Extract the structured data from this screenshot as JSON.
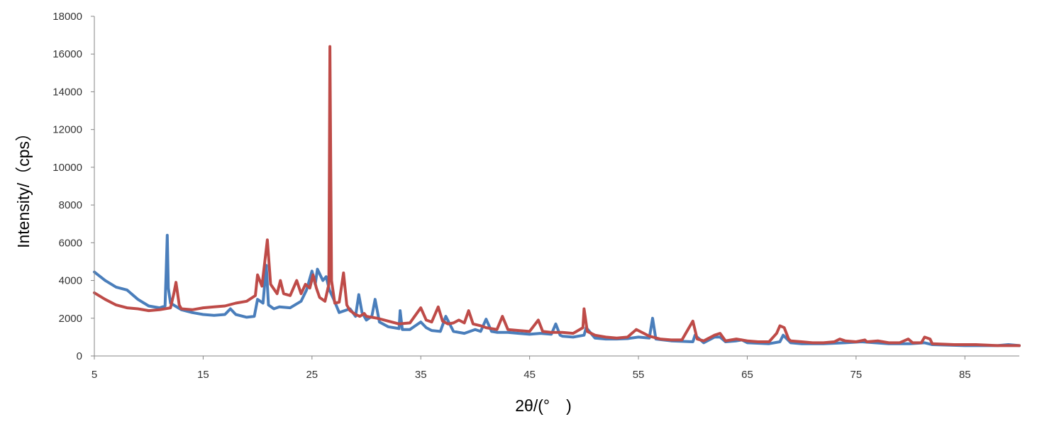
{
  "chart_data": {
    "type": "line",
    "title": "",
    "xlabel": "2θ/(°　)",
    "ylabel": "Intensity/（cps）",
    "xlim": [
      5,
      90
    ],
    "ylim": [
      0,
      18000
    ],
    "x_ticks": [
      5,
      15,
      25,
      35,
      45,
      55,
      65,
      75,
      85
    ],
    "x_tick_labels": [
      "5",
      "15",
      "25",
      "35",
      "45",
      "55",
      "65",
      "75",
      "85"
    ],
    "y_ticks": [
      0,
      2000,
      4000,
      6000,
      8000,
      10000,
      12000,
      14000,
      16000,
      18000
    ],
    "y_tick_labels": [
      "0",
      "2000",
      "4000",
      "6000",
      "8000",
      "10000",
      "12000",
      "14000",
      "16000",
      "18000"
    ],
    "grid": false,
    "legend": "none",
    "series": [
      {
        "color": "#4a7ebb",
        "points": [
          [
            5,
            4450
          ],
          [
            6,
            4000
          ],
          [
            7,
            3650
          ],
          [
            8,
            3500
          ],
          [
            9,
            3000
          ],
          [
            10,
            2650
          ],
          [
            11,
            2550
          ],
          [
            11.5,
            2650
          ],
          [
            11.6,
            4500
          ],
          [
            11.7,
            6400
          ],
          [
            11.8,
            3600
          ],
          [
            12,
            2800
          ],
          [
            13,
            2450
          ],
          [
            14,
            2300
          ],
          [
            15,
            2200
          ],
          [
            16,
            2150
          ],
          [
            17,
            2200
          ],
          [
            17.5,
            2500
          ],
          [
            18,
            2200
          ],
          [
            19,
            2050
          ],
          [
            19.7,
            2100
          ],
          [
            20,
            3000
          ],
          [
            20.5,
            2800
          ],
          [
            20.8,
            4800
          ],
          [
            21,
            2700
          ],
          [
            21.5,
            2500
          ],
          [
            22,
            2600
          ],
          [
            23,
            2550
          ],
          [
            24,
            2900
          ],
          [
            24.5,
            3500
          ],
          [
            25,
            4500
          ],
          [
            25.3,
            3800
          ],
          [
            25.5,
            4600
          ],
          [
            26,
            4000
          ],
          [
            26.3,
            4200
          ],
          [
            26.6,
            3500
          ],
          [
            27,
            3000
          ],
          [
            27.5,
            2300
          ],
          [
            28,
            2400
          ],
          [
            28.5,
            2500
          ],
          [
            29,
            2100
          ],
          [
            29.3,
            3250
          ],
          [
            29.6,
            2300
          ],
          [
            30,
            1900
          ],
          [
            30.5,
            2100
          ],
          [
            30.8,
            3000
          ],
          [
            31.2,
            1800
          ],
          [
            32,
            1550
          ],
          [
            33,
            1450
          ],
          [
            33.1,
            2400
          ],
          [
            33.3,
            1400
          ],
          [
            34,
            1400
          ],
          [
            35,
            1800
          ],
          [
            35.5,
            1500
          ],
          [
            36,
            1350
          ],
          [
            36.8,
            1300
          ],
          [
            37.3,
            2100
          ],
          [
            38,
            1300
          ],
          [
            39,
            1200
          ],
          [
            40,
            1400
          ],
          [
            40.5,
            1300
          ],
          [
            41,
            1950
          ],
          [
            41.5,
            1300
          ],
          [
            42,
            1250
          ],
          [
            43,
            1250
          ],
          [
            44,
            1200
          ],
          [
            45,
            1150
          ],
          [
            46,
            1200
          ],
          [
            47,
            1150
          ],
          [
            47.4,
            1700
          ],
          [
            47.8,
            1100
          ],
          [
            48,
            1050
          ],
          [
            49,
            1000
          ],
          [
            50,
            1100
          ],
          [
            50.2,
            1500
          ],
          [
            51,
            950
          ],
          [
            52,
            900
          ],
          [
            53,
            900
          ],
          [
            54,
            920
          ],
          [
            55,
            1000
          ],
          [
            56,
            950
          ],
          [
            56.3,
            2000
          ],
          [
            56.6,
            900
          ],
          [
            58,
            800
          ],
          [
            60,
            750
          ],
          [
            60.2,
            1100
          ],
          [
            61,
            700
          ],
          [
            62,
            1000
          ],
          [
            62.5,
            1000
          ],
          [
            63,
            750
          ],
          [
            64,
            800
          ],
          [
            64.5,
            850
          ],
          [
            65,
            700
          ],
          [
            67,
            650
          ],
          [
            68,
            750
          ],
          [
            68.3,
            1100
          ],
          [
            69,
            700
          ],
          [
            70,
            650
          ],
          [
            72,
            650
          ],
          [
            74,
            700
          ],
          [
            75.5,
            750
          ],
          [
            78,
            650
          ],
          [
            80,
            650
          ],
          [
            81.3,
            700
          ],
          [
            82,
            600
          ],
          [
            85,
            550
          ],
          [
            88,
            550
          ],
          [
            89,
            600
          ],
          [
            90,
            550
          ]
        ]
      },
      {
        "color": "#be4b48",
        "points": [
          [
            5,
            3350
          ],
          [
            6,
            3000
          ],
          [
            7,
            2700
          ],
          [
            8,
            2550
          ],
          [
            9,
            2500
          ],
          [
            10,
            2400
          ],
          [
            11,
            2450
          ],
          [
            12,
            2550
          ],
          [
            12.3,
            3300
          ],
          [
            12.5,
            3900
          ],
          [
            12.8,
            2700
          ],
          [
            13,
            2500
          ],
          [
            14,
            2450
          ],
          [
            15,
            2550
          ],
          [
            16,
            2600
          ],
          [
            17,
            2650
          ],
          [
            18,
            2800
          ],
          [
            19,
            2900
          ],
          [
            19.8,
            3200
          ],
          [
            20,
            4300
          ],
          [
            20.4,
            3700
          ],
          [
            20.9,
            6150
          ],
          [
            21.2,
            3800
          ],
          [
            21.8,
            3300
          ],
          [
            22.1,
            4000
          ],
          [
            22.4,
            3300
          ],
          [
            23,
            3200
          ],
          [
            23.6,
            4000
          ],
          [
            24,
            3300
          ],
          [
            24.4,
            3800
          ],
          [
            24.8,
            3600
          ],
          [
            25.1,
            4300
          ],
          [
            25.4,
            3600
          ],
          [
            25.7,
            3100
          ],
          [
            26.2,
            2900
          ],
          [
            26.55,
            3800
          ],
          [
            26.65,
            16400
          ],
          [
            26.8,
            4000
          ],
          [
            27.1,
            2800
          ],
          [
            27.5,
            2850
          ],
          [
            27.9,
            4400
          ],
          [
            28.2,
            2700
          ],
          [
            28.5,
            2400
          ],
          [
            29,
            2200
          ],
          [
            29.4,
            2100
          ],
          [
            29.8,
            2250
          ],
          [
            30,
            2100
          ],
          [
            31,
            2000
          ],
          [
            32,
            1850
          ],
          [
            33,
            1700
          ],
          [
            34,
            1750
          ],
          [
            35,
            2550
          ],
          [
            35.5,
            1900
          ],
          [
            36,
            1800
          ],
          [
            36.6,
            2600
          ],
          [
            37,
            1850
          ],
          [
            37.5,
            1700
          ],
          [
            38,
            1750
          ],
          [
            38.5,
            1900
          ],
          [
            39,
            1750
          ],
          [
            39.4,
            2400
          ],
          [
            39.8,
            1700
          ],
          [
            40.5,
            1600
          ],
          [
            41,
            1500
          ],
          [
            42,
            1400
          ],
          [
            42.5,
            2100
          ],
          [
            43,
            1400
          ],
          [
            44,
            1350
          ],
          [
            45,
            1300
          ],
          [
            45.8,
            1900
          ],
          [
            46.2,
            1300
          ],
          [
            47,
            1250
          ],
          [
            48,
            1250
          ],
          [
            49,
            1200
          ],
          [
            49.9,
            1500
          ],
          [
            50,
            2500
          ],
          [
            50.3,
            1300
          ],
          [
            51,
            1100
          ],
          [
            52,
            1000
          ],
          [
            53,
            950
          ],
          [
            54,
            1000
          ],
          [
            54.8,
            1400
          ],
          [
            55.5,
            1200
          ],
          [
            56,
            1050
          ],
          [
            57,
            900
          ],
          [
            58,
            850
          ],
          [
            59,
            850
          ],
          [
            60,
            1850
          ],
          [
            60.4,
            900
          ],
          [
            61,
            800
          ],
          [
            62,
            1100
          ],
          [
            62.5,
            1200
          ],
          [
            63,
            800
          ],
          [
            64,
            900
          ],
          [
            65,
            800
          ],
          [
            66,
            750
          ],
          [
            67,
            750
          ],
          [
            67.7,
            1200
          ],
          [
            68,
            1600
          ],
          [
            68.4,
            1500
          ],
          [
            68.8,
            900
          ],
          [
            69,
            800
          ],
          [
            70,
            750
          ],
          [
            71,
            700
          ],
          [
            72,
            700
          ],
          [
            73,
            750
          ],
          [
            73.5,
            900
          ],
          [
            74,
            800
          ],
          [
            75,
            750
          ],
          [
            75.8,
            850
          ],
          [
            76,
            750
          ],
          [
            77,
            800
          ],
          [
            78,
            700
          ],
          [
            79,
            700
          ],
          [
            79.8,
            900
          ],
          [
            80.2,
            700
          ],
          [
            81,
            700
          ],
          [
            81.3,
            1000
          ],
          [
            81.8,
            900
          ],
          [
            82,
            650
          ],
          [
            84,
            600
          ],
          [
            86,
            600
          ],
          [
            88,
            550
          ],
          [
            90,
            550
          ]
        ]
      }
    ]
  }
}
